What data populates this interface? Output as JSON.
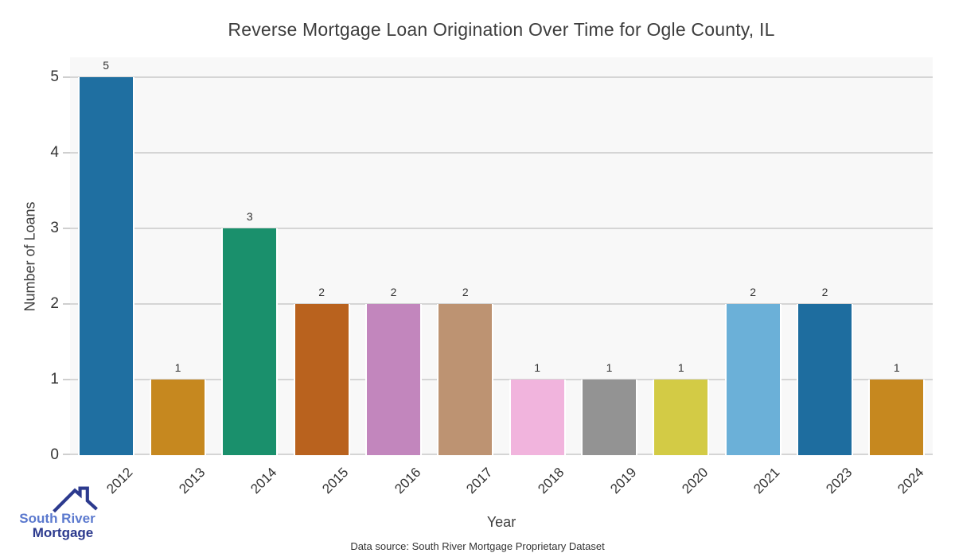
{
  "chart_data": {
    "type": "bar",
    "title": "Reverse Mortgage Loan Origination Over Time for Ogle County, IL",
    "xlabel": "Year",
    "ylabel": "Number of Loans",
    "categories": [
      "2012",
      "2013",
      "2014",
      "2015",
      "2016",
      "2017",
      "2018",
      "2019",
      "2020",
      "2021",
      "2023",
      "2024"
    ],
    "values": [
      5,
      1,
      3,
      2,
      2,
      2,
      1,
      1,
      1,
      2,
      2,
      1
    ],
    "bar_colors": [
      "#1f6fa1",
      "#c6881f",
      "#1a906c",
      "#b9621e",
      "#c286bd",
      "#bd9372",
      "#f1b4dd",
      "#939393",
      "#d3cb45",
      "#6bb0d8",
      "#1e6d9f",
      "#c6881f"
    ],
    "yticks": [
      0,
      1,
      2,
      3,
      4,
      5
    ],
    "ylim": [
      0,
      5.3
    ],
    "grid": true,
    "legend": false,
    "value_labels_shown": true
  },
  "footer": {
    "source_note": "Data source: South River Mortgage Proprietary Dataset"
  },
  "logo": {
    "line1": "South River",
    "line2": "Mortgage",
    "color_primary": "#5b79ce",
    "color_secondary": "#2c3a8e"
  },
  "style": {
    "page_bg": "#ffffff",
    "plot_bg": "#f8f8f8",
    "grid_color": "#d5d5d5",
    "text_color": "#3a3a3a"
  }
}
